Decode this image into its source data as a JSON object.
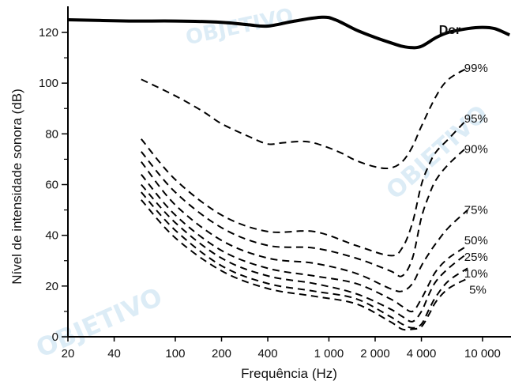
{
  "watermark": "OBJETIVO",
  "colors": {
    "curves": "#000000",
    "watermark": "#9ec9e6",
    "background": "#ffffff"
  },
  "chart_data": {
    "type": "line",
    "title": "",
    "xlabel": "Frequência (Hz)",
    "ylabel": "Nível de intensidade sonora (dB)",
    "xscale": "log",
    "xlim": [
      20,
      15000
    ],
    "ylim": [
      0,
      130
    ],
    "x_ticks": [
      {
        "value": 20,
        "label": "20"
      },
      {
        "value": 40,
        "label": "40"
      },
      {
        "value": 100,
        "label": "100"
      },
      {
        "value": 200,
        "label": "200"
      },
      {
        "value": 400,
        "label": "400"
      },
      {
        "value": 1000,
        "label": "1 000"
      },
      {
        "value": 2000,
        "label": "2 000"
      },
      {
        "value": 4000,
        "label": "4 000"
      },
      {
        "value": 10000,
        "label": "10 000"
      }
    ],
    "y_ticks": [
      {
        "value": 0,
        "label": "0"
      },
      {
        "value": 20,
        "label": "20"
      },
      {
        "value": 40,
        "label": "40"
      },
      {
        "value": 60,
        "label": "60"
      },
      {
        "value": 80,
        "label": "80"
      },
      {
        "value": 100,
        "label": "100"
      },
      {
        "value": 120,
        "label": "120"
      }
    ],
    "y_minor_ticks": [
      10,
      30,
      50,
      70,
      90,
      110
    ],
    "grid": false,
    "series": [
      {
        "name": "Dor",
        "style": "solid",
        "x": [
          20,
          50,
          100,
          200,
          300,
          400,
          600,
          900,
          1100,
          1500,
          2000,
          2500,
          3000,
          3500,
          4000,
          5000,
          6000,
          8000,
          10000,
          12000,
          15000
        ],
        "y": [
          125,
          124.5,
          124.5,
          124,
          123,
          122.5,
          124.5,
          126,
          125,
          121,
          118,
          116,
          114.5,
          114,
          114.5,
          118,
          120,
          121.5,
          122,
          121.5,
          119
        ]
      },
      {
        "name": "99%",
        "style": "dashed",
        "x": [
          60,
          100,
          150,
          200,
          300,
          400,
          500,
          700,
          900,
          1200,
          1500,
          2000,
          2500,
          3000,
          3500,
          4000,
          5000,
          6000,
          8000
        ],
        "y": [
          101.5,
          95,
          89,
          84,
          79,
          76,
          76.5,
          77,
          75.5,
          72.5,
          69.5,
          67,
          66.5,
          69,
          75,
          83,
          95,
          101.5,
          106
        ]
      },
      {
        "name": "95%",
        "style": "dashed",
        "x": [
          60,
          100,
          200,
          400,
          800,
          1500,
          2500,
          3000,
          3500,
          4000,
          4500,
          5000,
          6000,
          8000
        ],
        "y": [
          78,
          62,
          48,
          41.5,
          41.5,
          36,
          32,
          35,
          45,
          60,
          68,
          73,
          78,
          86
        ]
      },
      {
        "name": "90%",
        "style": "dashed",
        "x": [
          60,
          100,
          200,
          400,
          800,
          1500,
          2500,
          3000,
          3500,
          4000,
          4500,
          5000,
          6000,
          8000
        ],
        "y": [
          73,
          57,
          43,
          36,
          35,
          31,
          26,
          24,
          31,
          47,
          56,
          62,
          68,
          75
        ]
      },
      {
        "name": "75%",
        "style": "dashed",
        "x": [
          60,
          100,
          200,
          400,
          800,
          1500,
          2500,
          3000,
          3500,
          4000,
          4500,
          5000,
          6000,
          8000
        ],
        "y": [
          69,
          52,
          38,
          31,
          29,
          25,
          19,
          18,
          21,
          28,
          33,
          37,
          43,
          50
        ]
      },
      {
        "name": "50%",
        "style": "dashed",
        "x": [
          60,
          100,
          200,
          400,
          800,
          1500,
          2500,
          3000,
          3500,
          4000,
          4500,
          5000,
          6000,
          8000
        ],
        "y": [
          64,
          48,
          34,
          27,
          24,
          21,
          15,
          12,
          10,
          15,
          21,
          26,
          31,
          36
        ]
      },
      {
        "name": "25%",
        "style": "dashed",
        "x": [
          60,
          100,
          200,
          400,
          800,
          1500,
          2500,
          3000,
          3500,
          4000,
          4500,
          5000,
          6000,
          8000
        ],
        "y": [
          60,
          45,
          31,
          24,
          21,
          17,
          11,
          8,
          6,
          10,
          17,
          22,
          27,
          33
        ]
      },
      {
        "name": "10%",
        "style": "dashed",
        "x": [
          60,
          100,
          200,
          400,
          800,
          1500,
          2500,
          3000,
          3500,
          4000,
          4500,
          5000,
          6000,
          8000
        ],
        "y": [
          57,
          42,
          28,
          21,
          18,
          15,
          8,
          5,
          3.5,
          5,
          11,
          16,
          22,
          27
        ]
      },
      {
        "name": "5%",
        "style": "dashed",
        "x": [
          60,
          100,
          200,
          400,
          800,
          1500,
          2500,
          3000,
          3500,
          4000,
          4500,
          5000,
          6000,
          8000
        ],
        "y": [
          54,
          39,
          26,
          19,
          16,
          13,
          6,
          3,
          3,
          4,
          9,
          14,
          19,
          23
        ]
      }
    ],
    "annotations": [
      {
        "text": "Dor",
        "x": 5200,
        "y": 121
      },
      {
        "text": "99%",
        "x": 7600,
        "y": 106
      },
      {
        "text": "95%",
        "x": 7600,
        "y": 86
      },
      {
        "text": "90%",
        "x": 7600,
        "y": 74
      },
      {
        "text": "75%",
        "x": 7600,
        "y": 50
      },
      {
        "text": "50%",
        "x": 7600,
        "y": 38
      },
      {
        "text": "25%",
        "x": 7600,
        "y": 31.5
      },
      {
        "text": "10%",
        "x": 7600,
        "y": 25
      },
      {
        "text": "5%",
        "x": 8200,
        "y": 18.5
      }
    ]
  }
}
